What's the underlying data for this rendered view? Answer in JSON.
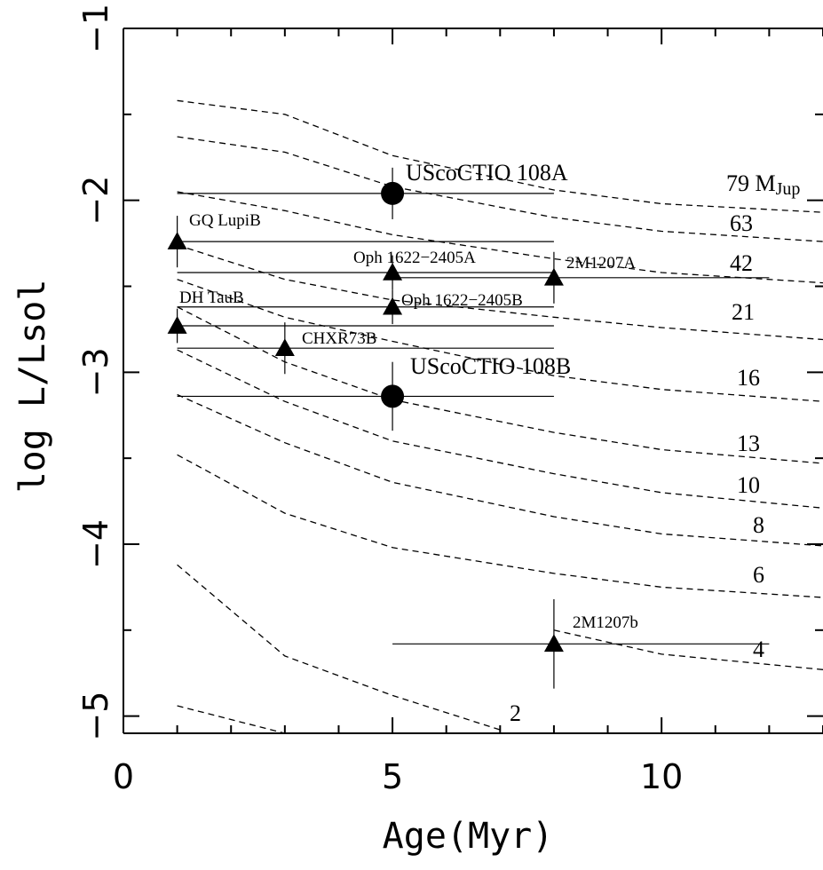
{
  "chart_data": {
    "type": "scatter",
    "title": "",
    "xlabel": "Age(Myr)",
    "ylabel": "log L/Lsol",
    "xlim": [
      0,
      13
    ],
    "ylim": [
      -5.1,
      -1
    ],
    "x_ticks": [
      {
        "value": 0,
        "label": "0"
      },
      {
        "value": 5,
        "label": "5"
      },
      {
        "value": 10,
        "label": "10"
      }
    ],
    "y_ticks": [
      {
        "value": -1,
        "label": "−1"
      },
      {
        "value": -2,
        "label": "−2"
      },
      {
        "value": -3,
        "label": "−3"
      },
      {
        "value": -4,
        "label": "−4"
      },
      {
        "value": -5,
        "label": "−5"
      }
    ],
    "grid": false,
    "isochrones": [
      {
        "mass_label": "79 M",
        "mass_unit": "Jup",
        "points": [
          [
            1,
            -1.42
          ],
          [
            3,
            -1.5
          ],
          [
            5,
            -1.74
          ],
          [
            8,
            -1.94
          ],
          [
            10,
            -2.02
          ],
          [
            13,
            -2.07
          ]
        ]
      },
      {
        "mass_label": "63",
        "points": [
          [
            1,
            -1.63
          ],
          [
            3,
            -1.72
          ],
          [
            5,
            -1.92
          ],
          [
            8,
            -2.1
          ],
          [
            10,
            -2.18
          ],
          [
            13,
            -2.24
          ]
        ]
      },
      {
        "mass_label": "42",
        "points": [
          [
            1,
            -1.95
          ],
          [
            3,
            -2.06
          ],
          [
            5,
            -2.2
          ],
          [
            8,
            -2.34
          ],
          [
            10,
            -2.42
          ],
          [
            13,
            -2.48
          ]
        ]
      },
      {
        "mass_label": "21",
        "points": [
          [
            1,
            -2.26
          ],
          [
            3,
            -2.46
          ],
          [
            5,
            -2.58
          ],
          [
            8,
            -2.68
          ],
          [
            10,
            -2.74
          ],
          [
            13,
            -2.81
          ]
        ]
      },
      {
        "mass_label": "16",
        "points": [
          [
            1,
            -2.46
          ],
          [
            3,
            -2.68
          ],
          [
            5,
            -2.82
          ],
          [
            8,
            -3.02
          ],
          [
            10,
            -3.1
          ],
          [
            13,
            -3.17
          ]
        ]
      },
      {
        "mass_label": "13",
        "points": [
          [
            1,
            -2.62
          ],
          [
            3,
            -2.94
          ],
          [
            5,
            -3.16
          ],
          [
            8,
            -3.35
          ],
          [
            10,
            -3.45
          ],
          [
            13,
            -3.53
          ]
        ]
      },
      {
        "mass_label": "10",
        "points": [
          [
            1,
            -2.87
          ],
          [
            3,
            -3.17
          ],
          [
            5,
            -3.4
          ],
          [
            8,
            -3.59
          ],
          [
            10,
            -3.7
          ],
          [
            13,
            -3.79
          ]
        ]
      },
      {
        "mass_label": "8",
        "points": [
          [
            1,
            -3.13
          ],
          [
            3,
            -3.41
          ],
          [
            5,
            -3.64
          ],
          [
            8,
            -3.84
          ],
          [
            10,
            -3.94
          ],
          [
            13,
            -4.01
          ]
        ]
      },
      {
        "mass_label": "6",
        "points": [
          [
            1,
            -3.48
          ],
          [
            3,
            -3.82
          ],
          [
            5,
            -4.02
          ],
          [
            8,
            -4.17
          ],
          [
            10,
            -4.25
          ],
          [
            13,
            -4.31
          ]
        ]
      },
      {
        "mass_label": "4",
        "points": [
          [
            1,
            -4.12
          ],
          [
            3,
            -4.65
          ],
          [
            5,
            -4.88
          ],
          [
            7,
            -5.08
          ]
        ],
        "tail": [
          [
            8,
            -4.5
          ],
          [
            10,
            -4.64
          ],
          [
            13,
            -4.73
          ]
        ]
      },
      {
        "mass_label": "2",
        "points": [
          [
            1,
            -4.94
          ],
          [
            2,
            -5.02
          ],
          [
            3,
            -5.1
          ]
        ]
      }
    ],
    "objects": [
      {
        "name": "UScoCTIO 108A",
        "marker": "circle",
        "x": 5,
        "y": -1.96,
        "xerr_low": 4,
        "xerr_high": 3,
        "yerr_low": 0.15,
        "yerr_high": 0.15
      },
      {
        "name": "GQ LupiB",
        "marker": "triangle",
        "x": 1,
        "y": -2.24,
        "xerr_low": 0,
        "xerr_high": 7,
        "yerr_low": 0.15,
        "yerr_high": 0.15
      },
      {
        "name": "Oph 1622−2405A",
        "marker": "triangle",
        "x": 5,
        "y": -2.42,
        "xerr_low": 4,
        "xerr_high": 3,
        "yerr_low": 0.1,
        "yerr_high": 0.1
      },
      {
        "name": "2M1207A",
        "marker": "triangle",
        "x": 8,
        "y": -2.45,
        "xerr_low": 3,
        "xerr_high": 4,
        "yerr_low": 0.15,
        "yerr_high": 0.15
      },
      {
        "name": "Oph 1622−2405B",
        "marker": "triangle",
        "x": 5,
        "y": -2.62,
        "xerr_low": 4,
        "xerr_high": 3,
        "yerr_low": 0.1,
        "yerr_high": 0.1
      },
      {
        "name": "DH TauB",
        "marker": "triangle",
        "x": 1,
        "y": -2.73,
        "xerr_low": 0,
        "xerr_high": 7,
        "yerr_low": 0.1,
        "yerr_high": 0.1
      },
      {
        "name": "CHXR73B",
        "marker": "triangle",
        "x": 3,
        "y": -2.86,
        "xerr_low": 2,
        "xerr_high": 5,
        "yerr_low": 0.15,
        "yerr_high": 0.15
      },
      {
        "name": "UScoCTIO 108B",
        "marker": "circle",
        "x": 5,
        "y": -3.14,
        "xerr_low": 4,
        "xerr_high": 3,
        "yerr_low": 0.2,
        "yerr_high": 0.2
      },
      {
        "name": "2M1207b",
        "marker": "triangle",
        "x": 8,
        "y": -4.58,
        "xerr_low": 3,
        "xerr_high": 4,
        "yerr_low": 0.26,
        "yerr_high": 0.26
      }
    ]
  }
}
